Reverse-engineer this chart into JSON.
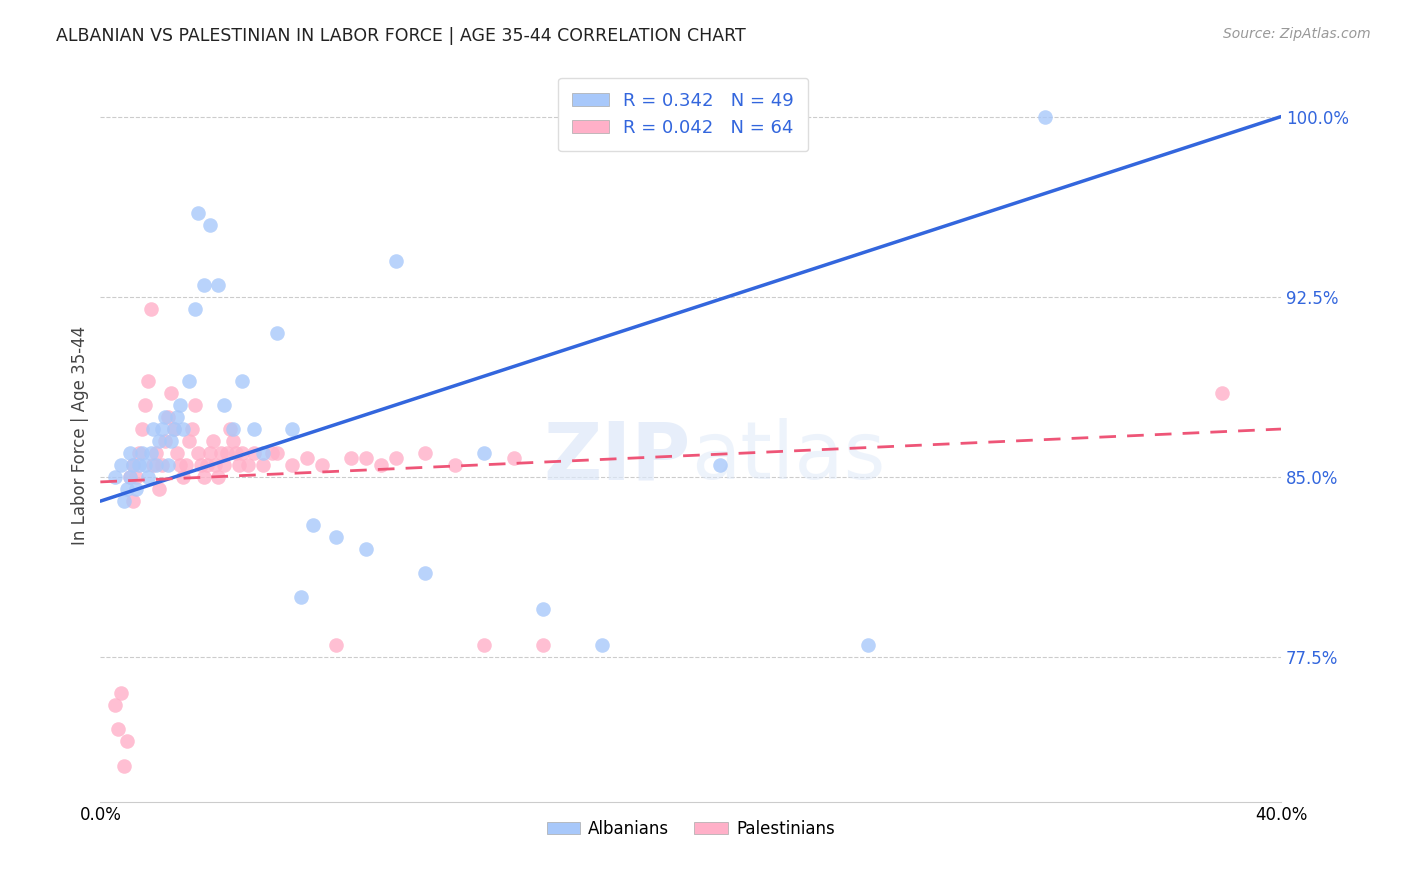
{
  "title": "ALBANIAN VS PALESTINIAN IN LABOR FORCE | AGE 35-44 CORRELATION CHART",
  "source": "Source: ZipAtlas.com",
  "ylabel_label": "In Labor Force | Age 35-44",
  "legend_label1": "Albanians",
  "legend_label2": "Palestinians",
  "r_albanian": 0.342,
  "n_albanian": 49,
  "r_palestinian": 0.042,
  "n_palestinian": 64,
  "color_albanian": "#a8c8fa",
  "color_palestinian": "#ffb0c8",
  "line_color_albanian": "#3366dd",
  "line_color_palestinian": "#ee5577",
  "background_color": "#ffffff",
  "xlim": [
    0.0,
    0.4
  ],
  "ylim": [
    0.715,
    1.02
  ],
  "yticks": [
    0.775,
    0.85,
    0.925,
    1.0
  ],
  "ytick_labels": [
    "77.5%",
    "85.0%",
    "92.5%",
    "100.0%"
  ],
  "xticks": [
    0.0,
    0.08,
    0.16,
    0.24,
    0.32,
    0.4
  ],
  "xtick_labels": [
    "0.0%",
    "",
    "",
    "",
    "",
    "40.0%"
  ],
  "albanian_x": [
    0.005,
    0.007,
    0.008,
    0.009,
    0.01,
    0.01,
    0.011,
    0.012,
    0.013,
    0.014,
    0.015,
    0.016,
    0.017,
    0.018,
    0.019,
    0.02,
    0.021,
    0.022,
    0.023,
    0.024,
    0.025,
    0.026,
    0.027,
    0.028,
    0.03,
    0.032,
    0.033,
    0.035,
    0.037,
    0.04,
    0.042,
    0.045,
    0.048,
    0.052,
    0.055,
    0.06,
    0.065,
    0.068,
    0.072,
    0.08,
    0.09,
    0.1,
    0.11,
    0.13,
    0.15,
    0.17,
    0.21,
    0.26,
    0.32
  ],
  "albanian_y": [
    0.85,
    0.855,
    0.84,
    0.845,
    0.86,
    0.85,
    0.855,
    0.845,
    0.855,
    0.86,
    0.855,
    0.85,
    0.86,
    0.87,
    0.855,
    0.865,
    0.87,
    0.875,
    0.855,
    0.865,
    0.87,
    0.875,
    0.88,
    0.87,
    0.89,
    0.92,
    0.96,
    0.93,
    0.955,
    0.93,
    0.88,
    0.87,
    0.89,
    0.87,
    0.86,
    0.91,
    0.87,
    0.8,
    0.83,
    0.825,
    0.82,
    0.94,
    0.81,
    0.86,
    0.795,
    0.78,
    0.855,
    0.78,
    1.0
  ],
  "palestinian_x": [
    0.005,
    0.006,
    0.007,
    0.008,
    0.009,
    0.01,
    0.011,
    0.011,
    0.012,
    0.013,
    0.014,
    0.015,
    0.016,
    0.017,
    0.018,
    0.019,
    0.02,
    0.021,
    0.022,
    0.023,
    0.024,
    0.025,
    0.026,
    0.027,
    0.028,
    0.029,
    0.03,
    0.031,
    0.032,
    0.033,
    0.034,
    0.035,
    0.036,
    0.037,
    0.038,
    0.039,
    0.04,
    0.041,
    0.042,
    0.043,
    0.044,
    0.045,
    0.046,
    0.047,
    0.048,
    0.05,
    0.052,
    0.055,
    0.058,
    0.06,
    0.065,
    0.07,
    0.075,
    0.08,
    0.085,
    0.09,
    0.095,
    0.1,
    0.11,
    0.12,
    0.13,
    0.14,
    0.15,
    0.38
  ],
  "palestinian_y": [
    0.755,
    0.745,
    0.76,
    0.73,
    0.74,
    0.85,
    0.855,
    0.84,
    0.85,
    0.86,
    0.87,
    0.88,
    0.89,
    0.92,
    0.855,
    0.86,
    0.845,
    0.855,
    0.865,
    0.875,
    0.885,
    0.87,
    0.86,
    0.855,
    0.85,
    0.855,
    0.865,
    0.87,
    0.88,
    0.86,
    0.855,
    0.85,
    0.855,
    0.86,
    0.865,
    0.855,
    0.85,
    0.86,
    0.855,
    0.86,
    0.87,
    0.865,
    0.86,
    0.855,
    0.86,
    0.855,
    0.86,
    0.855,
    0.86,
    0.86,
    0.855,
    0.858,
    0.855,
    0.78,
    0.858,
    0.858,
    0.855,
    0.858,
    0.86,
    0.855,
    0.78,
    0.858,
    0.78,
    0.885
  ],
  "line_albanian_x0": 0.0,
  "line_albanian_y0": 0.84,
  "line_albanian_x1": 0.4,
  "line_albanian_y1": 1.0,
  "line_palestinian_x0": 0.0,
  "line_palestinian_y0": 0.848,
  "line_palestinian_x1": 0.4,
  "line_palestinian_y1": 0.87
}
